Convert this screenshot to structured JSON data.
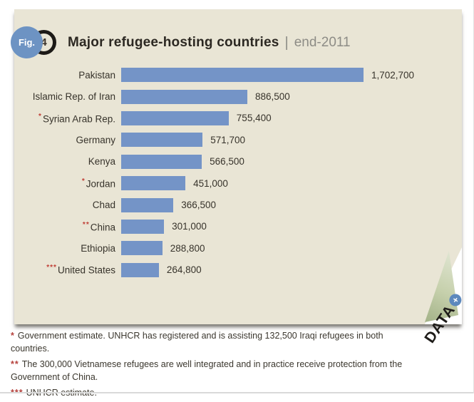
{
  "figure": {
    "fig_label": "Fig.",
    "fig_number": "4",
    "title": "Major refugee-hosting countries",
    "separator": "|",
    "subtitle": "end-2011"
  },
  "chart_data": {
    "type": "bar",
    "orientation": "horizontal",
    "title": "Major refugee-hosting countries | end-2011",
    "categories": [
      "Pakistan",
      "Islamic Rep. of Iran",
      "Syrian Arab Rep.",
      "Germany",
      "Kenya",
      "Jordan",
      "Chad",
      "China",
      "Ethiopia",
      "United States"
    ],
    "values": [
      1702700,
      886500,
      755400,
      571700,
      566500,
      451000,
      366500,
      301000,
      288800,
      264800
    ],
    "value_labels": [
      "1,702,700",
      "886,500",
      "755,400",
      "571,700",
      "566,500",
      "451,000",
      "366,500",
      "301,000",
      "288,800",
      "264,800"
    ],
    "category_markers": [
      "",
      "",
      "*",
      "",
      "",
      "*",
      "",
      "**",
      "",
      "***"
    ],
    "xlim": [
      0,
      1702700
    ],
    "grid": false,
    "legend": false,
    "bar_color": "#7494c7"
  },
  "ribbon": {
    "label": "DATA",
    "plus": "+"
  },
  "footnotes": [
    {
      "marker": "*",
      "text": "Government estimate. UNHCR has registered and is assisting 132,500 Iraqi refugees in both countries."
    },
    {
      "marker": "**",
      "text": "The 300,000 Vietnamese refugees are well integrated and in practice receive protection from the Government of China."
    },
    {
      "marker": "***",
      "text": "UNHCR estimate."
    }
  ],
  "colors": {
    "panel_background": "#e9e5d5",
    "bar_blue": "#7494c7",
    "badge_blue": "#6d93c3",
    "plus_badge_blue": "#5d89bd",
    "title_dark": "#2c2822",
    "subtitle_gray": "#8d8c86",
    "asterisk_red": "#c04037",
    "footnote_red": "#b5413c",
    "curl_sage": "#c6d0ac"
  }
}
